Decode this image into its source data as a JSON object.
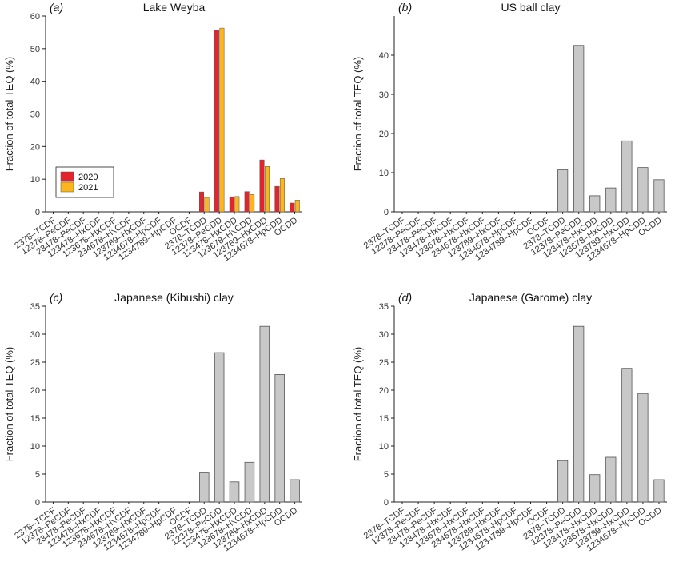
{
  "colors": {
    "series_2020": "#e4232b",
    "series_2021": "#fcb61c",
    "single": "#c8c8c8",
    "edge": "#555555",
    "axis": "#222222"
  },
  "categories": [
    "2378–TCDF",
    "12378–PeCDF",
    "23478–PeCDF",
    "123478–HxCDF",
    "123678–HxCDF",
    "234678–HxCDF",
    "123789–HxCDF",
    "1234678–HpCDF",
    "1234789–HpCDF",
    "OCDF",
    "2378–TCDD",
    "12378–PeCDD",
    "123478–HxCDD",
    "123678–HxCDD",
    "123789–HxCDD",
    "1234678–HpCDD",
    "OCDD"
  ],
  "chart_data": [
    {
      "type": "bar",
      "letter": "(a)",
      "title": "Lake Weyba",
      "ylabel": "Fraction of total TEQ (%)",
      "ylim": [
        0,
        60
      ],
      "yticks": [
        0,
        10,
        20,
        30,
        40,
        50,
        60
      ],
      "series": [
        {
          "name": "2020",
          "values": [
            0,
            0,
            0,
            0,
            0,
            0,
            0,
            0,
            0,
            0,
            6.1,
            55.7,
            4.6,
            6.2,
            15.9,
            7.8,
            2.7
          ]
        },
        {
          "name": "2021",
          "values": [
            0,
            0,
            0,
            0,
            0,
            0,
            0,
            0,
            0,
            0,
            4.4,
            56.3,
            4.7,
            5.3,
            13.9,
            10.2,
            3.6
          ]
        }
      ],
      "legend": "left"
    },
    {
      "type": "bar",
      "letter": "(b)",
      "title": "US ball clay",
      "ylabel": "Fraction of total TEQ (%)",
      "ylim": [
        0,
        50
      ],
      "yticks": [
        0,
        10,
        20,
        30,
        40
      ],
      "values": [
        0,
        0,
        0,
        0,
        0,
        0,
        0,
        0,
        0,
        0,
        10.7,
        42.5,
        4.1,
        6.1,
        18.1,
        11.3,
        8.2
      ]
    },
    {
      "type": "bar",
      "letter": "(c)",
      "title": "Japanese (Kibushi) clay",
      "ylabel": "Fraction of total TEQ (%)",
      "ylim": [
        0,
        35
      ],
      "yticks": [
        0,
        5,
        10,
        15,
        20,
        25,
        30,
        35
      ],
      "values": [
        0,
        0,
        0,
        0,
        0,
        0,
        0,
        0,
        0,
        0,
        5.2,
        26.7,
        3.6,
        7.1,
        31.4,
        22.8,
        4.0
      ]
    },
    {
      "type": "bar",
      "letter": "(d)",
      "title": "Japanese (Garome) clay",
      "ylabel": "Fraction of total TEQ (%)",
      "ylim": [
        0,
        35
      ],
      "yticks": [
        0,
        5,
        10,
        15,
        20,
        25,
        30,
        35
      ],
      "values": [
        0,
        0,
        0,
        0,
        0,
        0,
        0,
        0,
        0,
        0,
        7.4,
        31.4,
        4.9,
        8.0,
        23.9,
        19.4,
        4.0
      ]
    }
  ]
}
